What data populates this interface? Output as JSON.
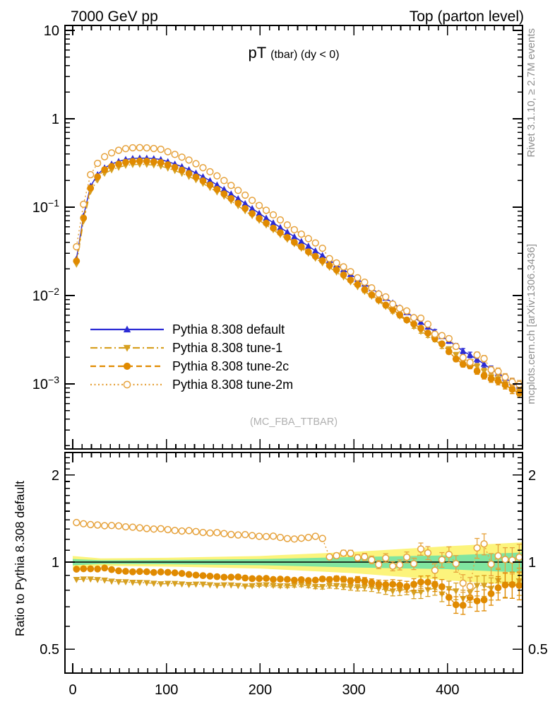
{
  "header": {
    "left": "7000 GeV pp",
    "right": "Top (parton level)"
  },
  "title": {
    "main": "pT",
    "rest": "(tbar) (dy < 0)"
  },
  "side_notes": {
    "rivet": "Rivet 3.1.10, ≥ 2.7M events",
    "mcplots": "mcplots.cern.ch [arXiv:1306.3436]"
  },
  "watermark": "(MC_FBA_TTBAR)",
  "chart_data": {
    "type": "line",
    "title": "pT (tbar) (dy < 0)",
    "xlabel": "",
    "ylabel": "",
    "xlim": [
      0,
      480
    ],
    "x_major_ticks": [
      {
        "v": 0,
        "label": "0"
      },
      {
        "v": 100,
        "label": "100"
      },
      {
        "v": 200,
        "label": "200"
      },
      {
        "v": 300,
        "label": "300"
      },
      {
        "v": 400,
        "label": "400"
      }
    ],
    "x_minor_step": 10,
    "legend_position": "middle-left of main panel",
    "grid": false,
    "main_panel": {
      "yscale": "log",
      "ylim": [
        0.00018,
        11.4
      ],
      "yticks": [
        {
          "v": 10,
          "base": "10",
          "exp": ""
        },
        {
          "v": 1,
          "base": "1",
          "exp": ""
        },
        {
          "v": 0.1,
          "base": "10",
          "exp": "−1"
        },
        {
          "v": 0.01,
          "base": "10",
          "exp": "−2"
        },
        {
          "v": 0.001,
          "base": "10",
          "exp": "−3"
        }
      ]
    },
    "ratio_panel": {
      "yscale": "log",
      "ylim": [
        0.41,
        2.39
      ],
      "ylabel": "Ratio to Pythia 8.308 default",
      "yticks": [
        {
          "v": 2,
          "label": "2"
        },
        {
          "v": 1,
          "label": "1"
        },
        {
          "v": 0.5,
          "label": "0.5"
        }
      ],
      "y_minor": [
        0.6,
        0.7,
        0.8,
        0.9,
        1.1,
        1.2,
        1.3,
        1.4,
        1.5,
        1.6,
        1.7,
        1.8,
        1.9,
        2.1,
        2.2,
        2.3
      ],
      "reference_line": 1.0
    },
    "marker_step": 7.5,
    "control_x": [
      5,
      15,
      25,
      35,
      45,
      55,
      65,
      75,
      85,
      95,
      105,
      115,
      125,
      135,
      145,
      155,
      165,
      175,
      185,
      195,
      205,
      215,
      225,
      235,
      245,
      255,
      265,
      275,
      285,
      295,
      305,
      315,
      325,
      335,
      345,
      355,
      365,
      375,
      385,
      395,
      405,
      415,
      425,
      435,
      445,
      455,
      465,
      475
    ],
    "series": [
      {
        "name": "Pythia 8.308 default",
        "color": "#2b2bd5",
        "marker": "triangle-up",
        "filled": true,
        "line": "solid",
        "role": "reference",
        "y": [
          0.026,
          0.145,
          0.225,
          0.285,
          0.32,
          0.345,
          0.357,
          0.36,
          0.356,
          0.345,
          0.318,
          0.292,
          0.263,
          0.233,
          0.204,
          0.176,
          0.151,
          0.128,
          0.108,
          0.091,
          0.077,
          0.0655,
          0.0557,
          0.0474,
          0.0403,
          0.0342,
          0.0291,
          0.0247,
          0.021,
          0.0178,
          0.0151,
          0.0128,
          0.0109,
          0.0092,
          0.0078,
          0.0066,
          0.0056,
          0.0047,
          0.004,
          0.0034,
          0.0029,
          0.0024,
          0.0021,
          0.0018,
          0.0015,
          0.0013,
          0.0011,
          0.00095
        ]
      },
      {
        "name": "Pythia 8.308 tune-1",
        "color": "#d7a021",
        "marker": "triangle-down",
        "filled": true,
        "line": "dashdot",
        "ratio_to_default": [
          0.87,
          0.875,
          0.87,
          0.865,
          0.855,
          0.855,
          0.85,
          0.85,
          0.845,
          0.84,
          0.845,
          0.84,
          0.835,
          0.84,
          0.835,
          0.83,
          0.835,
          0.83,
          0.825,
          0.83,
          0.835,
          0.83,
          0.825,
          0.83,
          0.835,
          0.825,
          0.82,
          0.83,
          0.825,
          0.82,
          0.815,
          0.82,
          0.81,
          0.8,
          0.79,
          0.81,
          0.78,
          0.79,
          0.82,
          0.77,
          0.83,
          0.74,
          0.79,
          0.85,
          0.8,
          0.87,
          0.82,
          0.86
        ]
      },
      {
        "name": "Pythia 8.308 tune-2c",
        "color": "#e08a00",
        "marker": "circle",
        "filled": true,
        "line": "dashed",
        "ratio_to_default": [
          0.945,
          0.95,
          0.945,
          0.955,
          0.935,
          0.93,
          0.925,
          0.93,
          0.92,
          0.925,
          0.92,
          0.915,
          0.905,
          0.9,
          0.895,
          0.89,
          0.885,
          0.89,
          0.88,
          0.875,
          0.88,
          0.87,
          0.875,
          0.865,
          0.87,
          0.86,
          0.875,
          0.87,
          0.88,
          0.86,
          0.87,
          0.855,
          0.84,
          0.835,
          0.84,
          0.82,
          0.84,
          0.86,
          0.84,
          0.82,
          0.72,
          0.7,
          0.76,
          0.72,
          0.77,
          0.82,
          0.84,
          0.83
        ]
      },
      {
        "name": "Pythia 8.308 tune-2m",
        "color": "#e6a23c",
        "marker": "circle",
        "filled": false,
        "line": "dotted",
        "ratio_to_default": [
          1.37,
          1.35,
          1.345,
          1.335,
          1.34,
          1.325,
          1.32,
          1.31,
          1.3,
          1.305,
          1.29,
          1.28,
          1.285,
          1.27,
          1.26,
          1.265,
          1.25,
          1.24,
          1.245,
          1.23,
          1.225,
          1.23,
          1.21,
          1.2,
          1.21,
          1.22,
          1.24,
          1.02,
          1.07,
          1.08,
          1.03,
          1.05,
          0.97,
          1.04,
          0.93,
          1.05,
          0.98,
          1.18,
          0.92,
          1.03,
          1.08,
          0.85,
          0.82,
          1.28,
          0.97,
          1.06,
          1.0,
          1.04
        ]
      }
    ],
    "rel_stat_err": [
      0.003,
      0.003,
      0.003,
      0.003,
      0.003,
      0.003,
      0.003,
      0.003,
      0.0035,
      0.004,
      0.004,
      0.0042,
      0.0045,
      0.005,
      0.0055,
      0.006,
      0.0065,
      0.007,
      0.008,
      0.009,
      0.01,
      0.011,
      0.012,
      0.013,
      0.015,
      0.016,
      0.018,
      0.02,
      0.022,
      0.024,
      0.026,
      0.029,
      0.032,
      0.035,
      0.038,
      0.042,
      0.046,
      0.05,
      0.054,
      0.059,
      0.064,
      0.069,
      0.075,
      0.081,
      0.087,
      0.094,
      0.101,
      0.108
    ],
    "uncertainty_bands": {
      "x": [
        0,
        30,
        100,
        200,
        300,
        400,
        480
      ],
      "yellow_halfwidth": [
        0.05,
        0.03,
        0.035,
        0.05,
        0.085,
        0.135,
        0.17
      ],
      "green_halfwidth": [
        0.025,
        0.015,
        0.017,
        0.024,
        0.042,
        0.055,
        0.08
      ],
      "yellow_color": "#fcf47c",
      "green_color": "#80e5a0"
    },
    "colors": {
      "frame": "#000000",
      "side_note_text": "#8f8f8f",
      "watermark_text": "#b0b0b0"
    }
  }
}
